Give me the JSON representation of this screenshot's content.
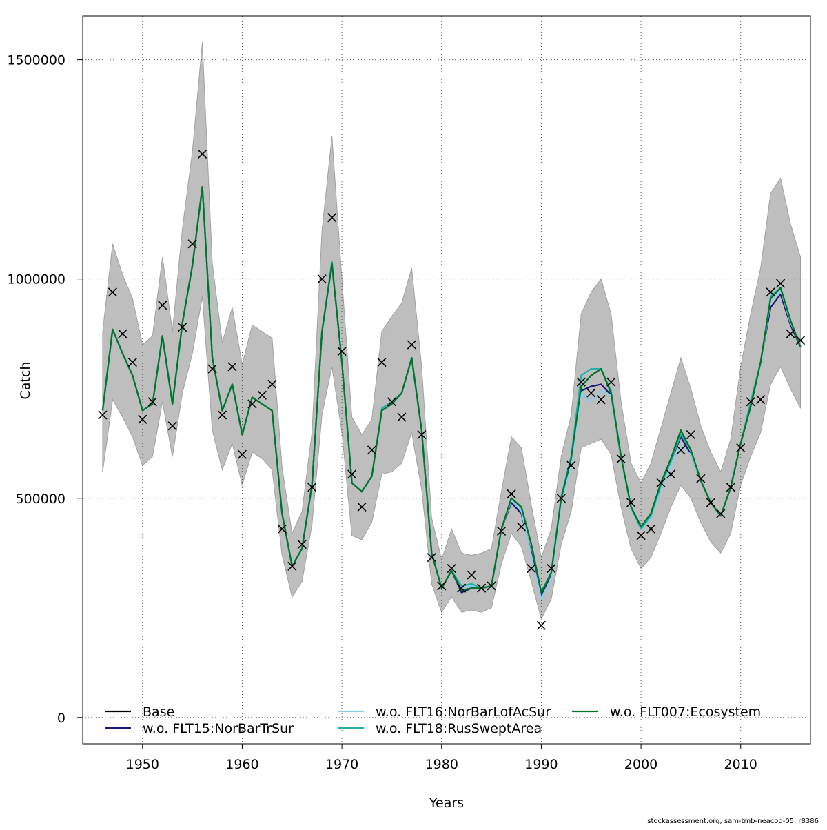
{
  "footer": "stockassessment.org, sam-tmb-neacod-05, r8386",
  "chart_data": {
    "type": "line",
    "xlabel": "Years",
    "ylabel": "Catch",
    "xlim": [
      1944,
      2017
    ],
    "ylim": [
      -60000,
      1600000
    ],
    "x_ticks": [
      1950,
      1960,
      1970,
      1980,
      1990,
      2000,
      2010
    ],
    "y_ticks": [
      0,
      500000,
      1000000,
      1500000
    ],
    "y_tick_labels": [
      "0",
      "500000",
      "1000000",
      "1500000"
    ],
    "grid": true,
    "legend_position": "bottom",
    "band_color": "#bebebe",
    "observed_color": "#000000",
    "years": [
      1946,
      1947,
      1948,
      1949,
      1950,
      1951,
      1952,
      1953,
      1954,
      1955,
      1956,
      1957,
      1958,
      1959,
      1960,
      1961,
      1962,
      1963,
      1964,
      1965,
      1966,
      1967,
      1968,
      1969,
      1970,
      1971,
      1972,
      1973,
      1974,
      1975,
      1976,
      1977,
      1978,
      1979,
      1980,
      1981,
      1982,
      1983,
      1984,
      1985,
      1986,
      1987,
      1988,
      1989,
      1990,
      1991,
      1992,
      1993,
      1994,
      1995,
      1996,
      1997,
      1998,
      1999,
      2000,
      2001,
      2002,
      2003,
      2004,
      2005,
      2006,
      2007,
      2008,
      2009,
      2010,
      2011,
      2012,
      2013,
      2014,
      2015,
      2016
    ],
    "band_upper": [
      880000,
      1080000,
      1010000,
      955000,
      850000,
      870000,
      1050000,
      880000,
      1115000,
      1290000,
      1540000,
      1035000,
      855000,
      935000,
      805000,
      895000,
      880000,
      865000,
      570000,
      420000,
      470000,
      650000,
      1110000,
      1325000,
      1000000,
      685000,
      645000,
      680000,
      880000,
      915000,
      945000,
      1025000,
      800000,
      455000,
      360000,
      430000,
      375000,
      370000,
      375000,
      385000,
      515000,
      640000,
      615000,
      485000,
      365000,
      430000,
      595000,
      690000,
      920000,
      970000,
      1000000,
      920000,
      720000,
      580000,
      535000,
      580000,
      660000,
      740000,
      820000,
      750000,
      665000,
      605000,
      560000,
      635000,
      800000,
      920000,
      1025000,
      1195000,
      1230000,
      1125000,
      1050000
    ],
    "band_lower": [
      560000,
      725000,
      685000,
      640000,
      575000,
      595000,
      720000,
      595000,
      740000,
      830000,
      960000,
      655000,
      565000,
      625000,
      530000,
      605000,
      590000,
      565000,
      370000,
      275000,
      310000,
      440000,
      690000,
      800000,
      650000,
      415000,
      405000,
      445000,
      555000,
      560000,
      580000,
      650000,
      520000,
      305000,
      240000,
      275000,
      240000,
      245000,
      240000,
      250000,
      350000,
      420000,
      390000,
      310000,
      225000,
      270000,
      395000,
      470000,
      615000,
      625000,
      635000,
      600000,
      480000,
      385000,
      340000,
      365000,
      420000,
      480000,
      530000,
      500000,
      445000,
      400000,
      375000,
      420000,
      530000,
      595000,
      650000,
      760000,
      800000,
      750000,
      705000
    ],
    "observed": [
      690000,
      970000,
      875000,
      810000,
      680000,
      720000,
      940000,
      665000,
      890000,
      1080000,
      1285000,
      795000,
      690000,
      800000,
      600000,
      715000,
      735000,
      760000,
      430000,
      345000,
      395000,
      525000,
      1000000,
      1140000,
      835000,
      555000,
      480000,
      610000,
      810000,
      720000,
      685000,
      850000,
      645000,
      365000,
      300000,
      340000,
      295000,
      325000,
      295000,
      300000,
      425000,
      510000,
      435000,
      340000,
      210000,
      340000,
      500000,
      575000,
      765000,
      740000,
      725000,
      765000,
      590000,
      490000,
      415000,
      430000,
      535000,
      555000,
      610000,
      645000,
      545000,
      490000,
      465000,
      525000,
      615000,
      720000,
      725000,
      970000,
      990000,
      875000,
      860000
    ],
    "series": [
      {
        "name": "Base",
        "color": "#000000",
        "values": [
          700000,
          885000,
          830000,
          780000,
          700000,
          715000,
          870000,
          715000,
          900000,
          1030000,
          1210000,
          820000,
          700000,
          760000,
          645000,
          730000,
          715000,
          700000,
          465000,
          345000,
          385000,
          530000,
          880000,
          1035000,
          810000,
          535000,
          515000,
          550000,
          700000,
          715000,
          740000,
          820000,
          655000,
          375000,
          295000,
          335000,
          290000,
          295000,
          295000,
          300000,
          430000,
          500000,
          480000,
          395000,
          285000,
          330000,
          500000,
          590000,
          755000,
          780000,
          795000,
          740000,
          595000,
          480000,
          435000,
          465000,
          535000,
          590000,
          655000,
          610000,
          540000,
          490000,
          460000,
          525000,
          625000,
          710000,
          810000,
          955000,
          980000,
          905000,
          845000
        ]
      },
      {
        "name": "w.o. FLT15:NorBarTrSur",
        "color": "#191970",
        "values": [
          700000,
          885000,
          830000,
          780000,
          700000,
          715000,
          870000,
          715000,
          900000,
          1030000,
          1210000,
          820000,
          700000,
          760000,
          645000,
          730000,
          715000,
          700000,
          465000,
          345000,
          385000,
          530000,
          880000,
          1035000,
          810000,
          535000,
          515000,
          550000,
          700000,
          715000,
          740000,
          820000,
          655000,
          375000,
          295000,
          335000,
          285000,
          295000,
          295000,
          300000,
          430000,
          490000,
          465000,
          375000,
          280000,
          325000,
          500000,
          580000,
          745000,
          755000,
          760000,
          735000,
          590000,
          480000,
          430000,
          460000,
          530000,
          585000,
          640000,
          600000,
          540000,
          490000,
          460000,
          525000,
          625000,
          710000,
          810000,
          935000,
          965000,
          895000,
          845000
        ]
      },
      {
        "name": "w.o. FLT16:NorBarLofAcSur",
        "color": "#87ceeb",
        "values": [
          700000,
          885000,
          830000,
          780000,
          700000,
          715000,
          870000,
          715000,
          900000,
          1030000,
          1210000,
          820000,
          700000,
          760000,
          645000,
          730000,
          715000,
          700000,
          465000,
          345000,
          385000,
          530000,
          880000,
          1035000,
          810000,
          535000,
          515000,
          550000,
          700000,
          715000,
          740000,
          820000,
          655000,
          375000,
          295000,
          335000,
          295000,
          300000,
          295000,
          300000,
          430000,
          495000,
          470000,
          370000,
          270000,
          320000,
          490000,
          575000,
          740000,
          720000,
          745000,
          735000,
          590000,
          475000,
          430000,
          455000,
          520000,
          575000,
          620000,
          600000,
          540000,
          490000,
          460000,
          525000,
          625000,
          720000,
          805000,
          950000,
          975000,
          900000,
          850000
        ]
      },
      {
        "name": "w.o. FLT18:RusSweptArea",
        "color": "#20b2aa",
        "values": [
          700000,
          885000,
          830000,
          780000,
          700000,
          715000,
          870000,
          715000,
          900000,
          1030000,
          1210000,
          820000,
          700000,
          760000,
          645000,
          730000,
          715000,
          700000,
          465000,
          345000,
          385000,
          530000,
          880000,
          1040000,
          810000,
          535000,
          515000,
          550000,
          705000,
          720000,
          740000,
          820000,
          655000,
          375000,
          295000,
          335000,
          300000,
          305000,
          295000,
          300000,
          430000,
          500000,
          480000,
          395000,
          285000,
          330000,
          505000,
          595000,
          780000,
          795000,
          795000,
          745000,
          595000,
          480000,
          430000,
          460000,
          530000,
          585000,
          645000,
          610000,
          540000,
          490000,
          460000,
          525000,
          625000,
          720000,
          810000,
          960000,
          980000,
          905000,
          845000
        ]
      },
      {
        "name": "w.o. FLT007:Ecosystem",
        "color": "#00752b",
        "values": [
          700000,
          885000,
          830000,
          780000,
          700000,
          715000,
          870000,
          715000,
          900000,
          1030000,
          1210000,
          820000,
          700000,
          760000,
          645000,
          730000,
          715000,
          700000,
          465000,
          345000,
          385000,
          530000,
          880000,
          1035000,
          810000,
          535000,
          515000,
          550000,
          700000,
          715000,
          740000,
          820000,
          655000,
          375000,
          295000,
          335000,
          290000,
          295000,
          295000,
          300000,
          430000,
          500000,
          480000,
          395000,
          285000,
          330000,
          500000,
          590000,
          755000,
          780000,
          795000,
          740000,
          595000,
          480000,
          435000,
          465000,
          535000,
          590000,
          655000,
          610000,
          540000,
          490000,
          460000,
          525000,
          625000,
          710000,
          810000,
          955000,
          980000,
          905000,
          845000
        ]
      }
    ]
  }
}
